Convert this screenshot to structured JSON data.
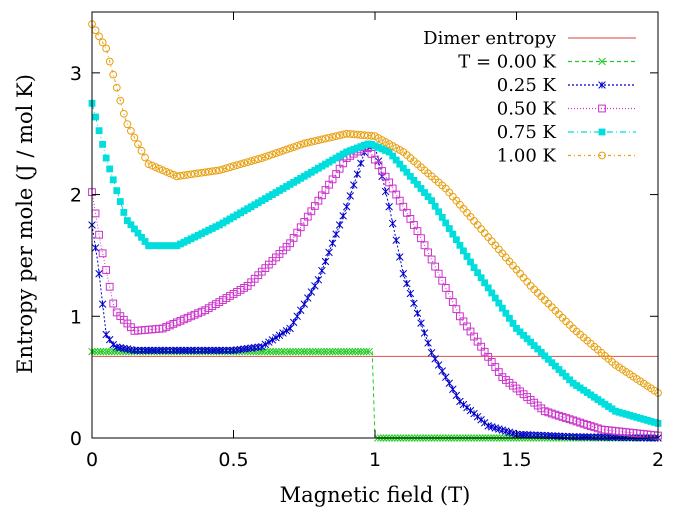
{
  "chart_data": {
    "type": "line",
    "xlabel": "Magnetic field (T)",
    "ylabel": "Entropy per mole (J / mol K)",
    "xlim": [
      0,
      2
    ],
    "ylim": [
      0,
      3.5
    ],
    "x_ticks": [
      0,
      0.5,
      1,
      1.5,
      2
    ],
    "x_tick_labels": [
      "0",
      "0.5",
      "1",
      "1.5",
      "2"
    ],
    "y_ticks": [
      0,
      1,
      2,
      3
    ],
    "y_tick_labels": [
      "0",
      "1",
      "2",
      "3"
    ],
    "grid": false,
    "legend_position": "top-right",
    "reference_line": {
      "name": "Dimer entropy",
      "y": 0.67,
      "color": "#e06666"
    },
    "series": [
      {
        "name": "T = 0.00 K",
        "color": "#22cc22",
        "marker": "x",
        "points": [
          [
            0,
            0.71
          ],
          [
            0.02,
            0.71
          ],
          [
            0.1,
            0.71
          ],
          [
            0.3,
            0.71
          ],
          [
            0.5,
            0.71
          ],
          [
            0.7,
            0.71
          ],
          [
            0.9,
            0.71
          ],
          [
            0.99,
            0.71
          ],
          [
            1.0,
            0.0
          ],
          [
            1.02,
            0.0
          ],
          [
            1.2,
            0.0
          ],
          [
            1.4,
            0.0
          ],
          [
            1.6,
            0.0
          ],
          [
            1.8,
            0.0
          ],
          [
            2.0,
            0.0
          ]
        ]
      },
      {
        "name": "0.25 K",
        "color": "#0000cc",
        "marker": "asterisk",
        "points": [
          [
            0,
            1.75
          ],
          [
            0.02,
            1.45
          ],
          [
            0.05,
            0.85
          ],
          [
            0.08,
            0.75
          ],
          [
            0.15,
            0.72
          ],
          [
            0.3,
            0.72
          ],
          [
            0.5,
            0.72
          ],
          [
            0.6,
            0.75
          ],
          [
            0.7,
            0.9
          ],
          [
            0.8,
            1.3
          ],
          [
            0.9,
            1.9
          ],
          [
            0.97,
            2.4
          ],
          [
            1.0,
            2.4
          ],
          [
            1.05,
            1.9
          ],
          [
            1.1,
            1.35
          ],
          [
            1.2,
            0.7
          ],
          [
            1.3,
            0.3
          ],
          [
            1.4,
            0.1
          ],
          [
            1.5,
            0.03
          ],
          [
            1.7,
            0.01
          ],
          [
            2.0,
            0.0
          ]
        ]
      },
      {
        "name": "0.50 K",
        "color": "#cc33cc",
        "marker": "square-open",
        "points": [
          [
            0,
            2.02
          ],
          [
            0.03,
            1.6
          ],
          [
            0.08,
            1.05
          ],
          [
            0.15,
            0.88
          ],
          [
            0.25,
            0.9
          ],
          [
            0.4,
            1.05
          ],
          [
            0.55,
            1.25
          ],
          [
            0.7,
            1.6
          ],
          [
            0.8,
            1.95
          ],
          [
            0.9,
            2.3
          ],
          [
            0.97,
            2.4
          ],
          [
            1.05,
            2.1
          ],
          [
            1.15,
            1.7
          ],
          [
            1.3,
            1.0
          ],
          [
            1.45,
            0.5
          ],
          [
            1.6,
            0.22
          ],
          [
            1.8,
            0.07
          ],
          [
            2.0,
            0.02
          ]
        ]
      },
      {
        "name": "0.75 K",
        "color": "#00dddd",
        "marker": "square-filled",
        "points": [
          [
            0,
            2.75
          ],
          [
            0.05,
            2.3
          ],
          [
            0.12,
            1.8
          ],
          [
            0.2,
            1.58
          ],
          [
            0.3,
            1.58
          ],
          [
            0.45,
            1.75
          ],
          [
            0.6,
            1.95
          ],
          [
            0.75,
            2.15
          ],
          [
            0.9,
            2.35
          ],
          [
            0.98,
            2.42
          ],
          [
            1.05,
            2.35
          ],
          [
            1.2,
            1.95
          ],
          [
            1.35,
            1.4
          ],
          [
            1.5,
            0.9
          ],
          [
            1.7,
            0.45
          ],
          [
            1.85,
            0.22
          ],
          [
            2.0,
            0.12
          ]
        ]
      },
      {
        "name": "1.00 K",
        "color": "#e8a010",
        "marker": "circle-open",
        "points": [
          [
            0,
            3.4
          ],
          [
            0.05,
            3.2
          ],
          [
            0.12,
            2.6
          ],
          [
            0.2,
            2.25
          ],
          [
            0.3,
            2.15
          ],
          [
            0.45,
            2.2
          ],
          [
            0.6,
            2.3
          ],
          [
            0.75,
            2.42
          ],
          [
            0.9,
            2.5
          ],
          [
            1.0,
            2.48
          ],
          [
            1.1,
            2.35
          ],
          [
            1.25,
            2.05
          ],
          [
            1.4,
            1.65
          ],
          [
            1.55,
            1.25
          ],
          [
            1.7,
            0.9
          ],
          [
            1.85,
            0.6
          ],
          [
            2.0,
            0.37
          ]
        ]
      }
    ]
  }
}
